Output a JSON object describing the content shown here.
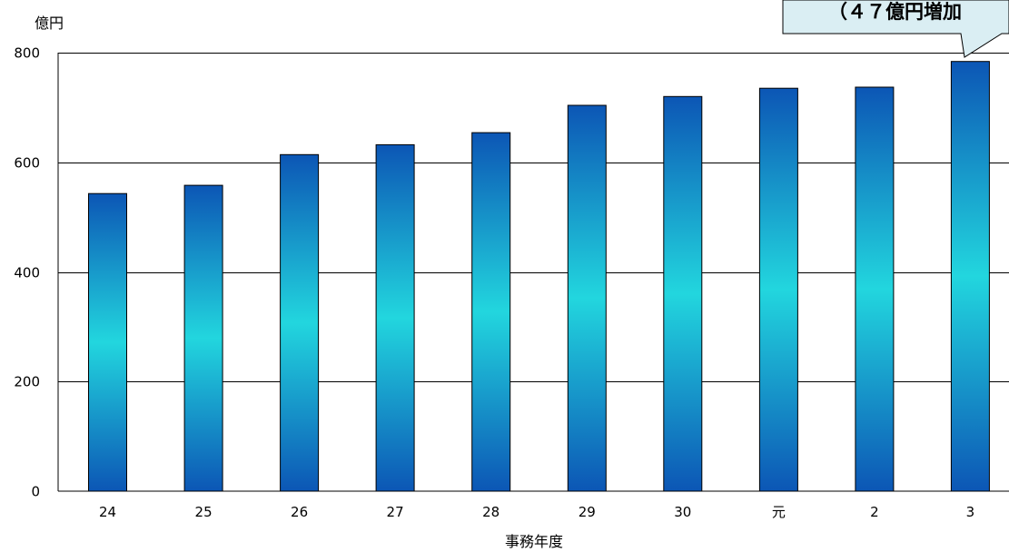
{
  "chart_data": {
    "type": "bar",
    "categories": [
      "24",
      "25",
      "26",
      "27",
      "28",
      "29",
      "30",
      "元",
      "2",
      "3"
    ],
    "values": [
      543,
      558,
      614,
      632,
      654,
      704,
      720,
      735,
      737,
      784
    ],
    "ylabel": "億円",
    "xlabel": "事務年度",
    "ylim": [
      0,
      800
    ],
    "yticks": [
      0,
      200,
      400,
      600,
      800
    ],
    "grid": true,
    "colors": {
      "bar_edge": "#0c56b5",
      "bar_center": "#22d6de",
      "bar_outline": "#000000",
      "callout_fill": "#daeef3"
    },
    "annotation": {
      "text": "（４７億円増加",
      "target_category": "3"
    }
  }
}
